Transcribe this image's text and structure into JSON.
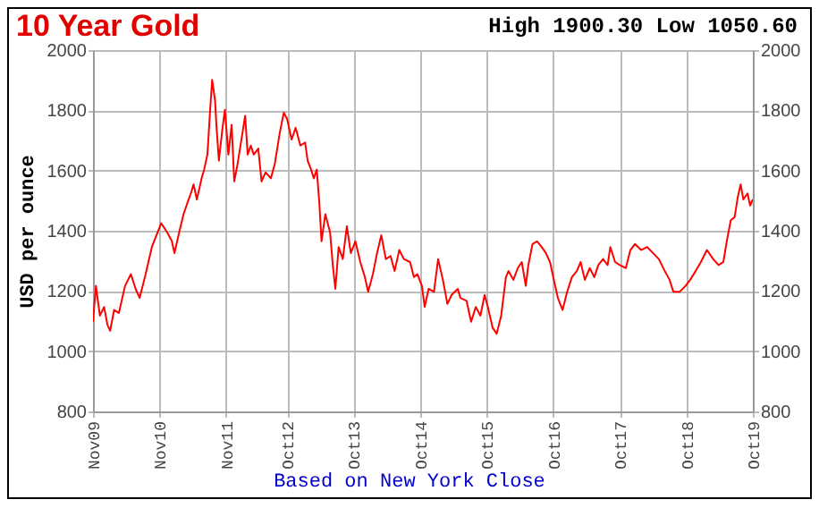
{
  "chart_data": {
    "type": "line",
    "title": "10 Year Gold",
    "ylabel": "USD per ounce",
    "annotations": [
      "High 1900.30 Low 1050.60",
      "Based on New York Close"
    ],
    "x": [
      "2009-11-01",
      "2009-11-17",
      "2009-12-09",
      "2010-01-01",
      "2010-01-19",
      "2010-02-03",
      "2010-02-25",
      "2010-03-23",
      "2010-04-26",
      "2010-05-28",
      "2010-06-23",
      "2010-07-15",
      "2010-08-17",
      "2010-09-20",
      "2010-10-22",
      "2010-11-10",
      "2010-12-13",
      "2011-01-08",
      "2011-01-22",
      "2011-02-17",
      "2011-03-13",
      "2011-04-04",
      "2011-04-22",
      "2011-05-07",
      "2011-05-25",
      "2011-06-20",
      "2011-07-04",
      "2011-07-22",
      "2011-08-07",
      "2011-08-17",
      "2011-09-02",
      "2011-09-09",
      "2011-09-23",
      "2011-10-11",
      "2011-10-26",
      "2011-11-14",
      "2011-12-02",
      "2011-12-16",
      "2012-01-01",
      "2012-01-22",
      "2012-02-14",
      "2012-02-28",
      "2012-03-16",
      "2012-04-01",
      "2012-04-26",
      "2012-05-14",
      "2012-06-05",
      "2012-07-04",
      "2012-07-26",
      "2012-08-21",
      "2012-09-13",
      "2012-10-01",
      "2012-10-26",
      "2012-11-17",
      "2012-12-13",
      "2013-01-08",
      "2013-01-22",
      "2013-02-10",
      "2013-02-25",
      "2013-03-13",
      "2013-03-27",
      "2013-04-08",
      "2013-04-29",
      "2013-05-25",
      "2013-06-09",
      "2013-06-23",
      "2013-07-11",
      "2013-08-03",
      "2013-08-25",
      "2013-09-16",
      "2013-10-11",
      "2013-11-07",
      "2013-12-02",
      "2013-12-20",
      "2014-01-15",
      "2014-02-07",
      "2014-03-02",
      "2014-03-27",
      "2014-04-22",
      "2014-05-14",
      "2014-06-09",
      "2014-07-04",
      "2014-08-07",
      "2014-08-28",
      "2014-09-16",
      "2014-10-11",
      "2014-10-26",
      "2014-11-17",
      "2014-12-16",
      "2015-01-08",
      "2015-02-03",
      "2015-02-28",
      "2015-03-23",
      "2015-04-26",
      "2015-05-10",
      "2015-06-13",
      "2015-07-08",
      "2015-08-03",
      "2015-08-28",
      "2015-09-20",
      "2015-10-08",
      "2015-11-03",
      "2015-11-25",
      "2015-12-20",
      "2016-01-15",
      "2016-01-29",
      "2016-02-25",
      "2016-03-20",
      "2016-04-11",
      "2016-05-03",
      "2016-05-17",
      "2016-06-09",
      "2016-07-04",
      "2016-07-29",
      "2016-08-21",
      "2016-09-13",
      "2016-10-04",
      "2016-10-26",
      "2016-11-21",
      "2016-12-16",
      "2017-01-11",
      "2017-02-07",
      "2017-02-28",
      "2017-03-23",
      "2017-04-19",
      "2017-05-14",
      "2017-06-05",
      "2017-07-01",
      "2017-07-26",
      "2017-08-10",
      "2017-09-05",
      "2017-10-01",
      "2017-11-03",
      "2017-11-28",
      "2017-12-23",
      "2018-01-26",
      "2018-02-28",
      "2018-04-01",
      "2018-05-03",
      "2018-06-05",
      "2018-07-01",
      "2018-07-22",
      "2018-08-25",
      "2018-09-27",
      "2018-10-22",
      "2018-11-21",
      "2018-12-20",
      "2019-01-22",
      "2019-02-25",
      "2019-03-27",
      "2019-04-22",
      "2019-05-14",
      "2019-06-02",
      "2019-06-23",
      "2019-07-11",
      "2019-07-26",
      "2019-08-10",
      "2019-09-02",
      "2019-09-16",
      "2019-10-01"
    ],
    "series": [
      {
        "color": "#ff0000",
        "values": [
          1098,
          1217,
          1118,
          1147,
          1088,
          1068,
          1137,
          1127,
          1217,
          1256,
          1207,
          1177,
          1256,
          1346,
          1395,
          1425,
          1395,
          1365,
          1326,
          1395,
          1455,
          1494,
          1524,
          1554,
          1504,
          1574,
          1603,
          1653,
          1812,
          1901,
          1832,
          1752,
          1633,
          1732,
          1802,
          1653,
          1752,
          1564,
          1613,
          1693,
          1782,
          1653,
          1683,
          1653,
          1673,
          1564,
          1594,
          1574,
          1623,
          1722,
          1792,
          1772,
          1703,
          1742,
          1683,
          1693,
          1633,
          1603,
          1574,
          1603,
          1494,
          1365,
          1455,
          1395,
          1286,
          1207,
          1346,
          1306,
          1415,
          1326,
          1365,
          1296,
          1246,
          1197,
          1256,
          1326,
          1385,
          1306,
          1316,
          1266,
          1336,
          1306,
          1296,
          1246,
          1256,
          1217,
          1147,
          1207,
          1197,
          1306,
          1237,
          1157,
          1187,
          1207,
          1177,
          1167,
          1098,
          1147,
          1118,
          1187,
          1147,
          1078,
          1058,
          1118,
          1246,
          1266,
          1237,
          1276,
          1296,
          1217,
          1286,
          1356,
          1365,
          1346,
          1326,
          1296,
          1237,
          1177,
          1137,
          1197,
          1246,
          1266,
          1296,
          1237,
          1276,
          1246,
          1286,
          1306,
          1286,
          1346,
          1296,
          1286,
          1276,
          1336,
          1356,
          1336,
          1346,
          1326,
          1306,
          1266,
          1237,
          1197,
          1197,
          1217,
          1237,
          1266,
          1296,
          1336,
          1306,
          1286,
          1296,
          1375,
          1435,
          1445,
          1514,
          1554,
          1504,
          1524,
          1484,
          1504
        ]
      }
    ],
    "xlim": [
      "2009-11-01",
      "2019-10-01"
    ],
    "xticks": [
      {
        "value": "2009-11-01",
        "label": "Nov09"
      },
      {
        "value": "2010-11-01",
        "label": "Nov10"
      },
      {
        "value": "2011-11-01",
        "label": "Nov11"
      },
      {
        "value": "2012-10-01",
        "label": "Oct12"
      },
      {
        "value": "2013-10-01",
        "label": "Oct13"
      },
      {
        "value": "2014-10-01",
        "label": "Oct14"
      },
      {
        "value": "2015-10-01",
        "label": "Oct15"
      },
      {
        "value": "2016-10-01",
        "label": "Oct16"
      },
      {
        "value": "2017-10-01",
        "label": "Oct17"
      },
      {
        "value": "2018-10-01",
        "label": "Oct18"
      },
      {
        "value": "2019-10-01",
        "label": "Oct19"
      }
    ],
    "ylim": [
      800,
      2000
    ],
    "yticks": [
      800,
      1000,
      1200,
      1400,
      1600,
      1800,
      2000
    ],
    "y2lim": [
      800,
      2000
    ],
    "y2ticks": [
      800,
      1000,
      1200,
      1400,
      1600,
      1800,
      2000
    ],
    "grid": true
  }
}
